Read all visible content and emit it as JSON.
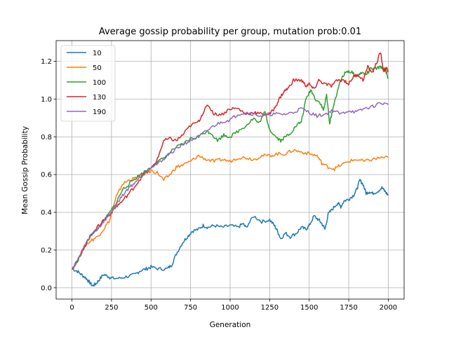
{
  "chart_data": {
    "type": "line",
    "title": "Average gossip probability per group, mutation prob:0.01",
    "xlabel": "Generation",
    "ylabel": "Mean Gossip Probability",
    "xlim": [
      -100,
      2100
    ],
    "ylim": [
      -0.06,
      1.31
    ],
    "xticks": [
      0,
      250,
      500,
      750,
      1000,
      1250,
      1500,
      1750,
      2000
    ],
    "yticks": [
      0.0,
      0.2,
      0.4,
      0.6,
      0.8,
      1.0,
      1.2
    ],
    "grid": true,
    "legend_position": "top-left",
    "series": [
      {
        "name": "10",
        "color": "#1f77b4",
        "points": [
          [
            0,
            0.1
          ],
          [
            30,
            0.09
          ],
          [
            60,
            0.07
          ],
          [
            90,
            0.05
          ],
          [
            110,
            0.03
          ],
          [
            130,
            0.01
          ],
          [
            150,
            0.02
          ],
          [
            170,
            0.04
          ],
          [
            200,
            0.07
          ],
          [
            230,
            0.06
          ],
          [
            250,
            0.05
          ],
          [
            300,
            0.05
          ],
          [
            350,
            0.06
          ],
          [
            400,
            0.07
          ],
          [
            430,
            0.09
          ],
          [
            470,
            0.1
          ],
          [
            500,
            0.11
          ],
          [
            550,
            0.1
          ],
          [
            600,
            0.1
          ],
          [
            630,
            0.12
          ],
          [
            660,
            0.18
          ],
          [
            700,
            0.24
          ],
          [
            730,
            0.27
          ],
          [
            760,
            0.3
          ],
          [
            800,
            0.31
          ],
          [
            830,
            0.33
          ],
          [
            860,
            0.32
          ],
          [
            900,
            0.33
          ],
          [
            950,
            0.32
          ],
          [
            1000,
            0.33
          ],
          [
            1050,
            0.32
          ],
          [
            1080,
            0.34
          ],
          [
            1100,
            0.32
          ],
          [
            1150,
            0.38
          ],
          [
            1200,
            0.35
          ],
          [
            1250,
            0.36
          ],
          [
            1280,
            0.33
          ],
          [
            1300,
            0.3
          ],
          [
            1320,
            0.26
          ],
          [
            1350,
            0.29
          ],
          [
            1380,
            0.27
          ],
          [
            1420,
            0.29
          ],
          [
            1450,
            0.32
          ],
          [
            1480,
            0.31
          ],
          [
            1500,
            0.33
          ],
          [
            1530,
            0.38
          ],
          [
            1560,
            0.36
          ],
          [
            1580,
            0.34
          ],
          [
            1600,
            0.31
          ],
          [
            1620,
            0.39
          ],
          [
            1650,
            0.42
          ],
          [
            1680,
            0.45
          ],
          [
            1700,
            0.43
          ],
          [
            1720,
            0.46
          ],
          [
            1750,
            0.47
          ],
          [
            1780,
            0.49
          ],
          [
            1800,
            0.52
          ],
          [
            1820,
            0.57
          ],
          [
            1840,
            0.55
          ],
          [
            1860,
            0.5
          ],
          [
            1880,
            0.51
          ],
          [
            1900,
            0.5
          ],
          [
            1930,
            0.51
          ],
          [
            1960,
            0.53
          ],
          [
            1980,
            0.51
          ],
          [
            2000,
            0.49
          ]
        ]
      },
      {
        "name": "50",
        "color": "#ff7f0e",
        "points": [
          [
            0,
            0.1
          ],
          [
            40,
            0.15
          ],
          [
            80,
            0.22
          ],
          [
            120,
            0.25
          ],
          [
            160,
            0.27
          ],
          [
            200,
            0.31
          ],
          [
            240,
            0.36
          ],
          [
            280,
            0.48
          ],
          [
            320,
            0.55
          ],
          [
            360,
            0.57
          ],
          [
            400,
            0.58
          ],
          [
            450,
            0.6
          ],
          [
            500,
            0.62
          ],
          [
            540,
            0.61
          ],
          [
            580,
            0.57
          ],
          [
            620,
            0.6
          ],
          [
            660,
            0.64
          ],
          [
            700,
            0.65
          ],
          [
            750,
            0.67
          ],
          [
            800,
            0.7
          ],
          [
            850,
            0.68
          ],
          [
            900,
            0.67
          ],
          [
            950,
            0.68
          ],
          [
            1000,
            0.67
          ],
          [
            1050,
            0.69
          ],
          [
            1100,
            0.69
          ],
          [
            1150,
            0.68
          ],
          [
            1200,
            0.7
          ],
          [
            1250,
            0.7
          ],
          [
            1300,
            0.71
          ],
          [
            1350,
            0.71
          ],
          [
            1400,
            0.73
          ],
          [
            1450,
            0.72
          ],
          [
            1500,
            0.71
          ],
          [
            1550,
            0.7
          ],
          [
            1580,
            0.66
          ],
          [
            1620,
            0.64
          ],
          [
            1660,
            0.63
          ],
          [
            1700,
            0.65
          ],
          [
            1750,
            0.67
          ],
          [
            1800,
            0.68
          ],
          [
            1850,
            0.67
          ],
          [
            1900,
            0.68
          ],
          [
            1950,
            0.69
          ],
          [
            2000,
            0.69
          ]
        ]
      },
      {
        "name": "100",
        "color": "#2ca02c",
        "points": [
          [
            0,
            0.1
          ],
          [
            40,
            0.15
          ],
          [
            80,
            0.22
          ],
          [
            120,
            0.28
          ],
          [
            160,
            0.31
          ],
          [
            200,
            0.35
          ],
          [
            240,
            0.4
          ],
          [
            280,
            0.45
          ],
          [
            320,
            0.52
          ],
          [
            360,
            0.55
          ],
          [
            400,
            0.58
          ],
          [
            450,
            0.61
          ],
          [
            500,
            0.64
          ],
          [
            550,
            0.67
          ],
          [
            600,
            0.7
          ],
          [
            650,
            0.74
          ],
          [
            700,
            0.76
          ],
          [
            750,
            0.79
          ],
          [
            800,
            0.8
          ],
          [
            850,
            0.83
          ],
          [
            880,
            0.82
          ],
          [
            920,
            0.78
          ],
          [
            960,
            0.81
          ],
          [
            1000,
            0.8
          ],
          [
            1050,
            0.83
          ],
          [
            1100,
            0.86
          ],
          [
            1150,
            0.9
          ],
          [
            1180,
            0.87
          ],
          [
            1220,
            0.93
          ],
          [
            1250,
            0.84
          ],
          [
            1290,
            0.8
          ],
          [
            1320,
            0.78
          ],
          [
            1350,
            0.8
          ],
          [
            1380,
            0.82
          ],
          [
            1420,
            0.86
          ],
          [
            1450,
            0.88
          ],
          [
            1480,
            1.0
          ],
          [
            1510,
            1.05
          ],
          [
            1540,
            1.0
          ],
          [
            1570,
            0.98
          ],
          [
            1590,
            0.94
          ],
          [
            1610,
            1.02
          ],
          [
            1630,
            0.87
          ],
          [
            1650,
            0.95
          ],
          [
            1680,
            1.05
          ],
          [
            1710,
            1.12
          ],
          [
            1740,
            1.15
          ],
          [
            1770,
            1.14
          ],
          [
            1800,
            1.12
          ],
          [
            1830,
            1.14
          ],
          [
            1860,
            1.13
          ],
          [
            1890,
            1.16
          ],
          [
            1920,
            1.16
          ],
          [
            1950,
            1.17
          ],
          [
            1980,
            1.16
          ],
          [
            2000,
            1.11
          ]
        ]
      },
      {
        "name": "130",
        "color": "#d62728",
        "points": [
          [
            0,
            0.1
          ],
          [
            40,
            0.15
          ],
          [
            80,
            0.22
          ],
          [
            120,
            0.28
          ],
          [
            160,
            0.32
          ],
          [
            200,
            0.36
          ],
          [
            240,
            0.39
          ],
          [
            280,
            0.43
          ],
          [
            320,
            0.46
          ],
          [
            360,
            0.5
          ],
          [
            400,
            0.54
          ],
          [
            450,
            0.6
          ],
          [
            500,
            0.63
          ],
          [
            540,
            0.68
          ],
          [
            580,
            0.78
          ],
          [
            620,
            0.79
          ],
          [
            660,
            0.78
          ],
          [
            700,
            0.81
          ],
          [
            750,
            0.86
          ],
          [
            800,
            0.88
          ],
          [
            830,
            0.93
          ],
          [
            860,
            0.97
          ],
          [
            900,
            0.92
          ],
          [
            950,
            0.92
          ],
          [
            1000,
            0.95
          ],
          [
            1050,
            0.95
          ],
          [
            1100,
            0.92
          ],
          [
            1150,
            0.93
          ],
          [
            1200,
            0.92
          ],
          [
            1250,
            0.92
          ],
          [
            1280,
            0.95
          ],
          [
            1310,
            1.0
          ],
          [
            1340,
            1.04
          ],
          [
            1370,
            1.06
          ],
          [
            1400,
            1.1
          ],
          [
            1450,
            1.1
          ],
          [
            1480,
            1.07
          ],
          [
            1500,
            1.08
          ],
          [
            1530,
            1.05
          ],
          [
            1560,
            1.1
          ],
          [
            1600,
            1.08
          ],
          [
            1640,
            1.07
          ],
          [
            1680,
            1.1
          ],
          [
            1720,
            1.1
          ],
          [
            1750,
            1.08
          ],
          [
            1780,
            1.12
          ],
          [
            1810,
            1.13
          ],
          [
            1840,
            1.1
          ],
          [
            1870,
            1.17
          ],
          [
            1900,
            1.14
          ],
          [
            1930,
            1.2
          ],
          [
            1950,
            1.25
          ],
          [
            1970,
            1.15
          ],
          [
            1990,
            1.16
          ],
          [
            2000,
            1.15
          ]
        ]
      },
      {
        "name": "190",
        "color": "#9467bd",
        "points": [
          [
            0,
            0.1
          ],
          [
            40,
            0.15
          ],
          [
            80,
            0.22
          ],
          [
            120,
            0.28
          ],
          [
            160,
            0.31
          ],
          [
            200,
            0.35
          ],
          [
            240,
            0.39
          ],
          [
            280,
            0.44
          ],
          [
            320,
            0.49
          ],
          [
            360,
            0.53
          ],
          [
            400,
            0.56
          ],
          [
            450,
            0.6
          ],
          [
            500,
            0.64
          ],
          [
            550,
            0.66
          ],
          [
            600,
            0.7
          ],
          [
            650,
            0.73
          ],
          [
            700,
            0.76
          ],
          [
            750,
            0.78
          ],
          [
            800,
            0.8
          ],
          [
            850,
            0.83
          ],
          [
            900,
            0.86
          ],
          [
            950,
            0.88
          ],
          [
            1000,
            0.89
          ],
          [
            1050,
            0.92
          ],
          [
            1100,
            0.93
          ],
          [
            1150,
            0.92
          ],
          [
            1200,
            0.91
          ],
          [
            1250,
            0.92
          ],
          [
            1300,
            0.92
          ],
          [
            1350,
            0.92
          ],
          [
            1400,
            0.93
          ],
          [
            1450,
            0.95
          ],
          [
            1500,
            0.93
          ],
          [
            1550,
            0.91
          ],
          [
            1600,
            0.92
          ],
          [
            1650,
            0.94
          ],
          [
            1700,
            0.92
          ],
          [
            1750,
            0.94
          ],
          [
            1800,
            0.93
          ],
          [
            1850,
            0.95
          ],
          [
            1900,
            0.96
          ],
          [
            1950,
            0.98
          ],
          [
            2000,
            0.97
          ]
        ]
      }
    ]
  }
}
